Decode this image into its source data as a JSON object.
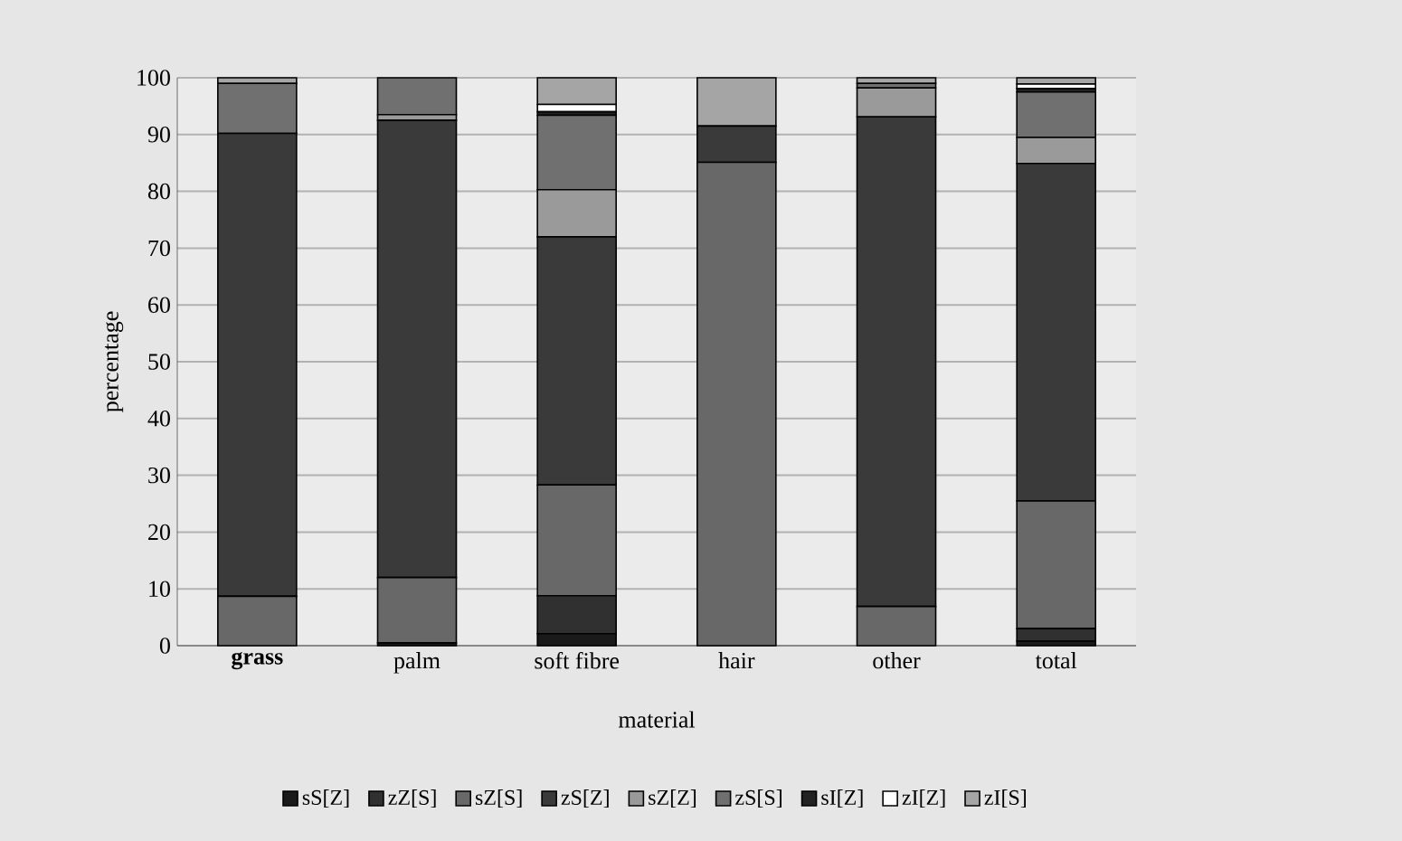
{
  "chart_data": {
    "type": "bar",
    "stacked": true,
    "xlabel": "material",
    "ylabel": "percentage",
    "categories": [
      "**grass**",
      "palm",
      "soft fibre",
      "hair",
      "other",
      "total"
    ],
    "ylim": [
      0,
      100
    ],
    "yticks": [
      0,
      10,
      20,
      30,
      40,
      50,
      60,
      70,
      80,
      90,
      100
    ],
    "grid": "y",
    "legend": "bottom",
    "series": [
      {
        "name": "sS[Z]",
        "color": "#1a1a1a",
        "values": [
          0,
          0.5,
          2.1,
          0,
          0,
          0.8
        ]
      },
      {
        "name": "zZ[S]",
        "color": "#303030",
        "values": [
          0,
          0,
          6.7,
          0,
          0,
          2.2
        ]
      },
      {
        "name": "sZ[S]",
        "color": "#686868",
        "values": [
          8.7,
          11.5,
          19.5,
          85.1,
          6.9,
          22.5
        ]
      },
      {
        "name": "zS[Z]",
        "color": "#3a3a3a",
        "values": [
          81.5,
          80.5,
          43.7,
          6.4,
          86.2,
          59.4
        ]
      },
      {
        "name": "sZ[Z]",
        "color": "#9a9a9a",
        "values": [
          0,
          1,
          8.3,
          0,
          5.1,
          4.6
        ]
      },
      {
        "name": "zS[S]",
        "color": "#707070",
        "values": [
          8.8,
          6.5,
          13.1,
          0,
          0.8,
          8
        ]
      },
      {
        "name": "sI[Z]",
        "color": "#222222",
        "values": [
          0,
          0,
          0.6,
          0,
          0,
          0.6
        ]
      },
      {
        "name": "zI[Z]",
        "color": "#ffffff",
        "values": [
          0,
          0,
          1.3,
          0,
          0,
          0.8
        ]
      },
      {
        "name": "zI[S]",
        "color": "#a5a5a5",
        "values": [
          1,
          0,
          4.7,
          8.5,
          1,
          1.1
        ]
      }
    ]
  }
}
